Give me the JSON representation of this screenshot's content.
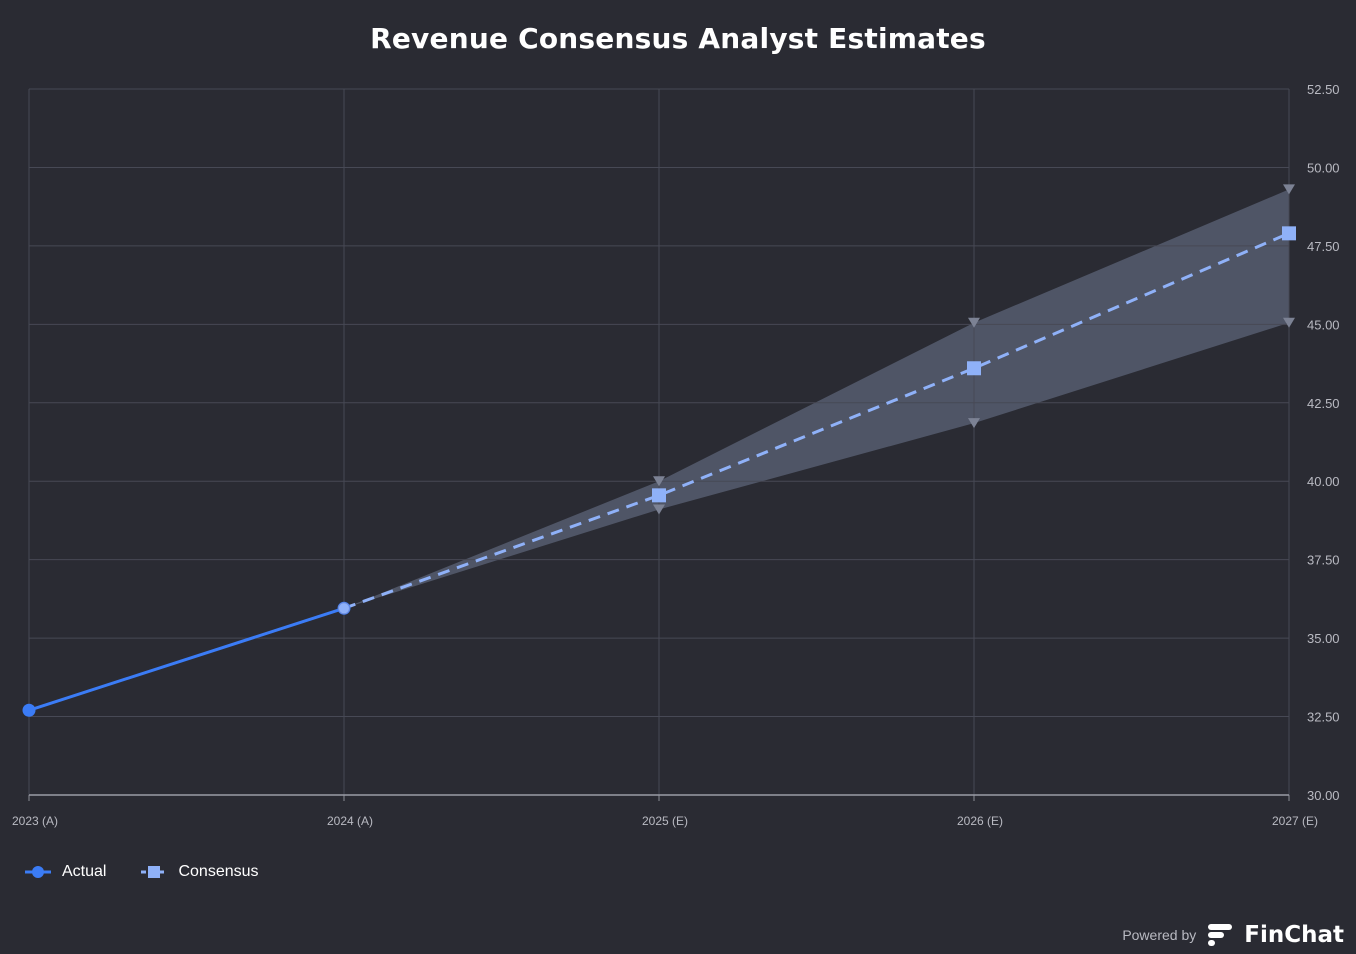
{
  "chart_data": {
    "type": "line",
    "title": "Revenue Consensus Analyst Estimates",
    "categories": [
      "2023 (A)",
      "2024 (A)",
      "2025 (E)",
      "2026 (E)",
      "2027 (E)"
    ],
    "ylim": [
      30.0,
      52.5
    ],
    "yticks": [
      "30.00",
      "32.50",
      "35.00",
      "37.50",
      "40.00",
      "42.50",
      "45.00",
      "47.50",
      "50.00",
      "52.50"
    ],
    "y_axis_side": "right",
    "grid": true,
    "legend_position": "bottom-left",
    "series": [
      {
        "name": "Actual",
        "style": "solid",
        "marker": "circle",
        "color": "#3b7cf6",
        "values": [
          32.7,
          35.95,
          null,
          null,
          null
        ]
      },
      {
        "name": "Consensus",
        "style": "dashed",
        "marker": "square",
        "color": "#8fb1f8",
        "values": [
          null,
          35.95,
          39.55,
          43.6,
          47.9
        ]
      }
    ],
    "range": {
      "color": "#5c6478",
      "high": [
        null,
        35.95,
        40.0,
        45.05,
        49.3
      ],
      "low": [
        null,
        35.95,
        39.1,
        41.85,
        45.05
      ]
    }
  },
  "attribution": {
    "powered_by": "Powered by",
    "brand": "FinChat"
  }
}
